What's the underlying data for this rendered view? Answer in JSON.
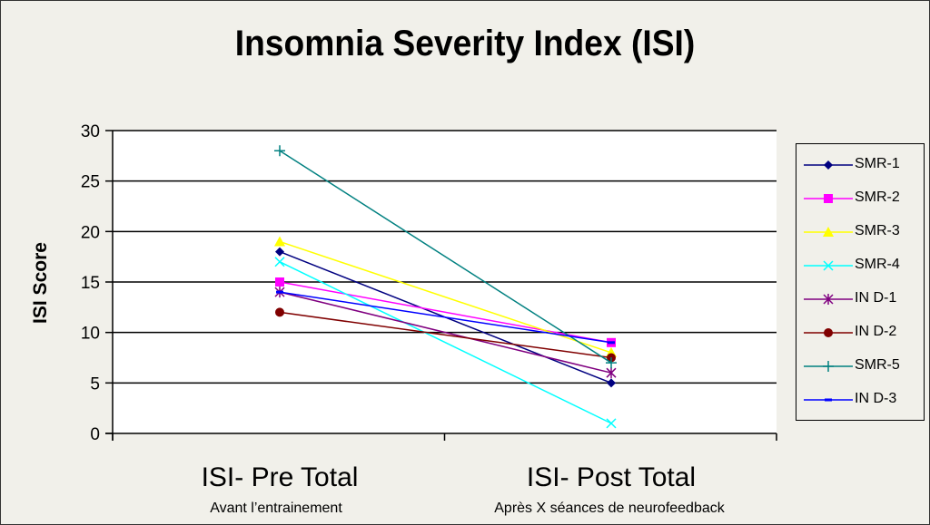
{
  "chart_data": {
    "type": "line",
    "title": "Insomnia Severity Index (ISI)",
    "xlabel": "",
    "ylabel": "ISI Score",
    "ylim": [
      0,
      30
    ],
    "yticks": [
      0,
      5,
      10,
      15,
      20,
      25,
      30
    ],
    "grid": true,
    "legend_position": "right",
    "categories": [
      "ISI- Pre Total",
      "ISI- Post Total"
    ],
    "category_sublabels": [
      "Avant l’entrainement",
      "Après X séances de neurofeedback"
    ],
    "series": [
      {
        "name": "SMR-1",
        "values": [
          18,
          5
        ],
        "color": "#000080",
        "marker": "diamond"
      },
      {
        "name": "SMR-2",
        "values": [
          15,
          9
        ],
        "color": "#ff00ff",
        "marker": "square"
      },
      {
        "name": "SMR-3",
        "values": [
          19,
          8
        ],
        "color": "#ffff00",
        "marker": "triangle"
      },
      {
        "name": "SMR-4",
        "values": [
          17,
          1
        ],
        "color": "#00ffff",
        "marker": "x"
      },
      {
        "name": "IND-1",
        "values": [
          14,
          6
        ],
        "color": "#800080",
        "marker": "star"
      },
      {
        "name": "IND-2",
        "values": [
          12,
          7.5
        ],
        "color": "#800000",
        "marker": "circle"
      },
      {
        "name": "SMR-5",
        "values": [
          28,
          7
        ],
        "color": "#008080",
        "marker": "plus"
      },
      {
        "name": "IND-3",
        "values": [
          14,
          9
        ],
        "color": "#0000ff",
        "marker": "dash"
      }
    ]
  },
  "legend_labels": [
    "SMR-1",
    "SMR-2",
    "SMR-3",
    "SMR-4",
    "IN D-1",
    "IN D-2",
    "SMR-5",
    "IN D-3"
  ]
}
